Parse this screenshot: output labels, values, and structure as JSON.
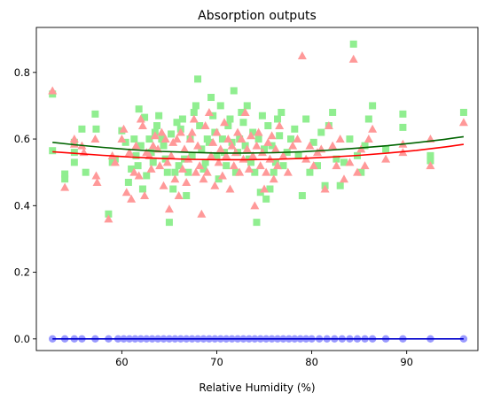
{
  "chart_data": {
    "type": "scatter",
    "title": "Absorption outputs",
    "xlabel": "Relative Humidity (%)",
    "ylabel": "",
    "xlim": [
      51.0,
      97.5
    ],
    "ylim": [
      -0.035,
      0.935
    ],
    "xticks": [
      60,
      70,
      80,
      90
    ],
    "yticks": [
      0.0,
      0.2,
      0.4,
      0.6,
      0.8
    ],
    "grid": false,
    "legend": "none",
    "series": [
      {
        "marker": "square",
        "color": "#90ee90",
        "points": [
          [
            52.7,
            0.735
          ],
          [
            52.7,
            0.565
          ],
          [
            54.0,
            0.495
          ],
          [
            54.0,
            0.48
          ],
          [
            55.0,
            0.59
          ],
          [
            55.0,
            0.53
          ],
          [
            55.0,
            0.56
          ],
          [
            55.8,
            0.63
          ],
          [
            56.2,
            0.5
          ],
          [
            57.2,
            0.675
          ],
          [
            57.3,
            0.63
          ],
          [
            58.6,
            0.375
          ],
          [
            59.0,
            0.53
          ],
          [
            59.3,
            0.54
          ],
          [
            60.0,
            0.625
          ],
          [
            60.4,
            0.59
          ],
          [
            60.7,
            0.47
          ],
          [
            61.0,
            0.51
          ],
          [
            61.3,
            0.6
          ],
          [
            61.5,
            0.55
          ],
          [
            61.7,
            0.52
          ],
          [
            61.8,
            0.69
          ],
          [
            62.0,
            0.58
          ],
          [
            62.2,
            0.45
          ],
          [
            62.4,
            0.665
          ],
          [
            62.6,
            0.49
          ],
          [
            62.9,
            0.6
          ],
          [
            63.1,
            0.56
          ],
          [
            63.3,
            0.53
          ],
          [
            63.5,
            0.62
          ],
          [
            63.7,
            0.64
          ],
          [
            63.9,
            0.67
          ],
          [
            64.2,
            0.6
          ],
          [
            64.4,
            0.58
          ],
          [
            64.6,
            0.54
          ],
          [
            64.8,
            0.5
          ],
          [
            65.0,
            0.35
          ],
          [
            65.2,
            0.615
          ],
          [
            65.4,
            0.45
          ],
          [
            65.6,
            0.5
          ],
          [
            65.8,
            0.65
          ],
          [
            66.0,
            0.52
          ],
          [
            66.2,
            0.63
          ],
          [
            66.4,
            0.66
          ],
          [
            66.6,
            0.54
          ],
          [
            66.8,
            0.43
          ],
          [
            67.0,
            0.5
          ],
          [
            67.2,
            0.6
          ],
          [
            67.4,
            0.55
          ],
          [
            67.6,
            0.68
          ],
          [
            67.8,
            0.7
          ],
          [
            68.0,
            0.78
          ],
          [
            68.2,
            0.64
          ],
          [
            68.4,
            0.57
          ],
          [
            68.6,
            0.51
          ],
          [
            68.8,
            0.53
          ],
          [
            69.0,
            0.6
          ],
          [
            69.2,
            0.59
          ],
          [
            69.4,
            0.725
          ],
          [
            69.6,
            0.67
          ],
          [
            69.8,
            0.62
          ],
          [
            70.0,
            0.55
          ],
          [
            70.2,
            0.48
          ],
          [
            70.4,
            0.7
          ],
          [
            70.6,
            0.6
          ],
          [
            70.8,
            0.56
          ],
          [
            71.0,
            0.52
          ],
          [
            71.2,
            0.64
          ],
          [
            71.4,
            0.66
          ],
          [
            71.6,
            0.59
          ],
          [
            71.8,
            0.745
          ],
          [
            72.0,
            0.5
          ],
          [
            72.2,
            0.56
          ],
          [
            72.4,
            0.6
          ],
          [
            72.6,
            0.68
          ],
          [
            72.8,
            0.65
          ],
          [
            73.0,
            0.58
          ],
          [
            73.2,
            0.7
          ],
          [
            73.4,
            0.54
          ],
          [
            73.6,
            0.53
          ],
          [
            73.8,
            0.62
          ],
          [
            74.0,
            0.5
          ],
          [
            74.2,
            0.35
          ],
          [
            74.4,
            0.6
          ],
          [
            74.6,
            0.44
          ],
          [
            74.8,
            0.67
          ],
          [
            75.0,
            0.57
          ],
          [
            75.2,
            0.42
          ],
          [
            75.4,
            0.64
          ],
          [
            75.6,
            0.45
          ],
          [
            75.8,
            0.58
          ],
          [
            76.0,
            0.5
          ],
          [
            76.2,
            0.53
          ],
          [
            76.4,
            0.66
          ],
          [
            76.6,
            0.61
          ],
          [
            76.8,
            0.68
          ],
          [
            77.0,
            0.52
          ],
          [
            77.4,
            0.56
          ],
          [
            77.8,
            0.6
          ],
          [
            78.2,
            0.63
          ],
          [
            78.6,
            0.55
          ],
          [
            79.0,
            0.43
          ],
          [
            79.4,
            0.66
          ],
          [
            79.8,
            0.5
          ],
          [
            80.2,
            0.59
          ],
          [
            80.6,
            0.52
          ],
          [
            81.0,
            0.62
          ],
          [
            81.4,
            0.46
          ],
          [
            81.8,
            0.64
          ],
          [
            82.2,
            0.68
          ],
          [
            82.6,
            0.54
          ],
          [
            83.0,
            0.46
          ],
          [
            83.4,
            0.53
          ],
          [
            84.0,
            0.6
          ],
          [
            84.4,
            0.885
          ],
          [
            84.8,
            0.55
          ],
          [
            85.2,
            0.5
          ],
          [
            85.6,
            0.58
          ],
          [
            86.0,
            0.66
          ],
          [
            86.4,
            0.7
          ],
          [
            87.8,
            0.57
          ],
          [
            89.6,
            0.675
          ],
          [
            89.6,
            0.635
          ],
          [
            92.5,
            0.55
          ],
          [
            92.5,
            0.535
          ],
          [
            96.0,
            0.68
          ]
        ]
      },
      {
        "marker": "triangle",
        "color": "#ff9999",
        "points": [
          [
            52.7,
            0.745
          ],
          [
            54.0,
            0.455
          ],
          [
            55.0,
            0.585
          ],
          [
            55.0,
            0.6
          ],
          [
            55.8,
            0.58
          ],
          [
            56.0,
            0.56
          ],
          [
            57.2,
            0.6
          ],
          [
            57.3,
            0.49
          ],
          [
            57.4,
            0.47
          ],
          [
            58.6,
            0.36
          ],
          [
            59.0,
            0.55
          ],
          [
            59.3,
            0.53
          ],
          [
            60.0,
            0.6
          ],
          [
            60.2,
            0.63
          ],
          [
            60.5,
            0.44
          ],
          [
            60.8,
            0.56
          ],
          [
            61.0,
            0.42
          ],
          [
            61.3,
            0.5
          ],
          [
            61.5,
            0.58
          ],
          [
            61.8,
            0.49
          ],
          [
            62.0,
            0.66
          ],
          [
            62.2,
            0.64
          ],
          [
            62.4,
            0.43
          ],
          [
            62.6,
            0.56
          ],
          [
            62.9,
            0.55
          ],
          [
            63.1,
            0.51
          ],
          [
            63.3,
            0.58
          ],
          [
            63.5,
            0.61
          ],
          [
            63.8,
            0.57
          ],
          [
            64.0,
            0.52
          ],
          [
            64.2,
            0.62
          ],
          [
            64.4,
            0.46
          ],
          [
            64.6,
            0.6
          ],
          [
            64.8,
            0.53
          ],
          [
            65.0,
            0.39
          ],
          [
            65.2,
            0.55
          ],
          [
            65.4,
            0.59
          ],
          [
            65.6,
            0.48
          ],
          [
            65.8,
            0.6
          ],
          [
            66.0,
            0.43
          ],
          [
            66.2,
            0.62
          ],
          [
            66.4,
            0.51
          ],
          [
            66.6,
            0.57
          ],
          [
            66.8,
            0.47
          ],
          [
            67.0,
            0.54
          ],
          [
            67.2,
            0.6
          ],
          [
            67.4,
            0.62
          ],
          [
            67.6,
            0.66
          ],
          [
            67.8,
            0.5
          ],
          [
            68.0,
            0.58
          ],
          [
            68.2,
            0.52
          ],
          [
            68.4,
            0.375
          ],
          [
            68.6,
            0.48
          ],
          [
            68.8,
            0.64
          ],
          [
            69.0,
            0.5
          ],
          [
            69.2,
            0.68
          ],
          [
            69.4,
            0.55
          ],
          [
            69.6,
            0.59
          ],
          [
            69.8,
            0.46
          ],
          [
            70.0,
            0.62
          ],
          [
            70.2,
            0.53
          ],
          [
            70.4,
            0.57
          ],
          [
            70.6,
            0.49
          ],
          [
            70.8,
            0.65
          ],
          [
            71.0,
            0.55
          ],
          [
            71.2,
            0.6
          ],
          [
            71.4,
            0.45
          ],
          [
            71.6,
            0.58
          ],
          [
            71.8,
            0.52
          ],
          [
            72.0,
            0.56
          ],
          [
            72.2,
            0.62
          ],
          [
            72.4,
            0.5
          ],
          [
            72.6,
            0.6
          ],
          [
            72.8,
            0.54
          ],
          [
            73.0,
            0.68
          ],
          [
            73.2,
            0.57
          ],
          [
            73.4,
            0.51
          ],
          [
            73.6,
            0.61
          ],
          [
            73.8,
            0.55
          ],
          [
            74.0,
            0.4
          ],
          [
            74.2,
            0.58
          ],
          [
            74.4,
            0.62
          ],
          [
            74.6,
            0.52
          ],
          [
            74.8,
            0.56
          ],
          [
            75.0,
            0.45
          ],
          [
            75.2,
            0.5
          ],
          [
            75.4,
            0.59
          ],
          [
            75.6,
            0.54
          ],
          [
            75.8,
            0.61
          ],
          [
            76.0,
            0.48
          ],
          [
            76.2,
            0.57
          ],
          [
            76.4,
            0.52
          ],
          [
            76.6,
            0.64
          ],
          [
            77.0,
            0.55
          ],
          [
            77.5,
            0.5
          ],
          [
            78.0,
            0.58
          ],
          [
            78.5,
            0.6
          ],
          [
            79.0,
            0.85
          ],
          [
            79.4,
            0.54
          ],
          [
            79.8,
            0.58
          ],
          [
            80.2,
            0.52
          ],
          [
            80.6,
            0.56
          ],
          [
            81.0,
            0.57
          ],
          [
            81.4,
            0.45
          ],
          [
            81.8,
            0.64
          ],
          [
            82.2,
            0.58
          ],
          [
            82.6,
            0.52
          ],
          [
            83.0,
            0.6
          ],
          [
            83.4,
            0.48
          ],
          [
            84.0,
            0.53
          ],
          [
            84.4,
            0.84
          ],
          [
            84.8,
            0.5
          ],
          [
            85.2,
            0.57
          ],
          [
            85.6,
            0.52
          ],
          [
            86.0,
            0.6
          ],
          [
            86.4,
            0.63
          ],
          [
            87.8,
            0.54
          ],
          [
            89.6,
            0.585
          ],
          [
            89.6,
            0.56
          ],
          [
            92.5,
            0.52
          ],
          [
            92.5,
            0.6
          ],
          [
            96.0,
            0.65
          ]
        ]
      },
      {
        "marker": "circle",
        "color": "#9999ff",
        "points": [
          [
            52.7,
            0
          ],
          [
            54.0,
            0
          ],
          [
            55.0,
            0
          ],
          [
            55.8,
            0
          ],
          [
            57.2,
            0
          ],
          [
            58.6,
            0
          ],
          [
            59.6,
            0
          ],
          [
            60.2,
            0
          ],
          [
            60.8,
            0
          ],
          [
            61.4,
            0
          ],
          [
            62.0,
            0
          ],
          [
            62.6,
            0
          ],
          [
            63.2,
            0
          ],
          [
            63.8,
            0
          ],
          [
            64.4,
            0
          ],
          [
            65.0,
            0
          ],
          [
            65.6,
            0
          ],
          [
            66.2,
            0
          ],
          [
            66.8,
            0
          ],
          [
            67.4,
            0
          ],
          [
            68.0,
            0
          ],
          [
            68.6,
            0
          ],
          [
            69.2,
            0
          ],
          [
            69.8,
            0
          ],
          [
            70.4,
            0
          ],
          [
            71.0,
            0
          ],
          [
            71.6,
            0
          ],
          [
            72.2,
            0
          ],
          [
            72.8,
            0
          ],
          [
            73.4,
            0
          ],
          [
            74.0,
            0
          ],
          [
            74.6,
            0
          ],
          [
            75.2,
            0
          ],
          [
            75.8,
            0
          ],
          [
            76.4,
            0
          ],
          [
            77.0,
            0
          ],
          [
            77.6,
            0
          ],
          [
            78.2,
            0
          ],
          [
            78.8,
            0
          ],
          [
            79.4,
            0
          ],
          [
            80.0,
            0
          ],
          [
            80.8,
            0
          ],
          [
            81.6,
            0
          ],
          [
            82.4,
            0
          ],
          [
            83.2,
            0
          ],
          [
            84.0,
            0
          ],
          [
            84.8,
            0
          ],
          [
            85.6,
            0
          ],
          [
            86.4,
            0
          ],
          [
            87.8,
            0
          ],
          [
            89.6,
            0
          ],
          [
            92.5,
            0
          ],
          [
            96.0,
            0
          ]
        ]
      }
    ],
    "fit_lines": [
      {
        "color": "#006400",
        "x": [
          52.7,
          55,
          58,
          61,
          64,
          67,
          70,
          73,
          76,
          79,
          82,
          85,
          88,
          91,
          94,
          96.0
        ],
        "y": [
          0.59,
          0.583,
          0.575,
          0.568,
          0.563,
          0.56,
          0.558,
          0.558,
          0.559,
          0.562,
          0.567,
          0.573,
          0.58,
          0.589,
          0.599,
          0.607
        ]
      },
      {
        "color": "#ff0000",
        "x": [
          52.7,
          55,
          58,
          61,
          64,
          67,
          70,
          73,
          76,
          79,
          82,
          85,
          88,
          91,
          94,
          96.0
        ],
        "y": [
          0.562,
          0.557,
          0.551,
          0.546,
          0.542,
          0.539,
          0.538,
          0.538,
          0.539,
          0.542,
          0.546,
          0.551,
          0.558,
          0.566,
          0.576,
          0.584
        ]
      },
      {
        "color": "#0000cc",
        "x": [
          52.7,
          96.0
        ],
        "y": [
          0.0,
          0.0
        ]
      }
    ]
  }
}
